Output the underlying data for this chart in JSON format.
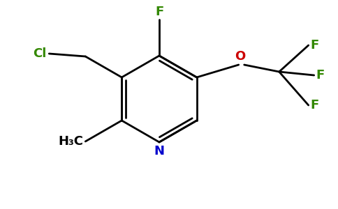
{
  "background_color": "#ffffff",
  "bond_color": "#000000",
  "atom_colors": {
    "F": "#338800",
    "Cl": "#338800",
    "O": "#cc0000",
    "N": "#0000cc",
    "C": "#000000",
    "H": "#000000"
  },
  "figsize": [
    4.84,
    3.0
  ],
  "dpi": 100,
  "lw": 2.0,
  "fs": 13
}
